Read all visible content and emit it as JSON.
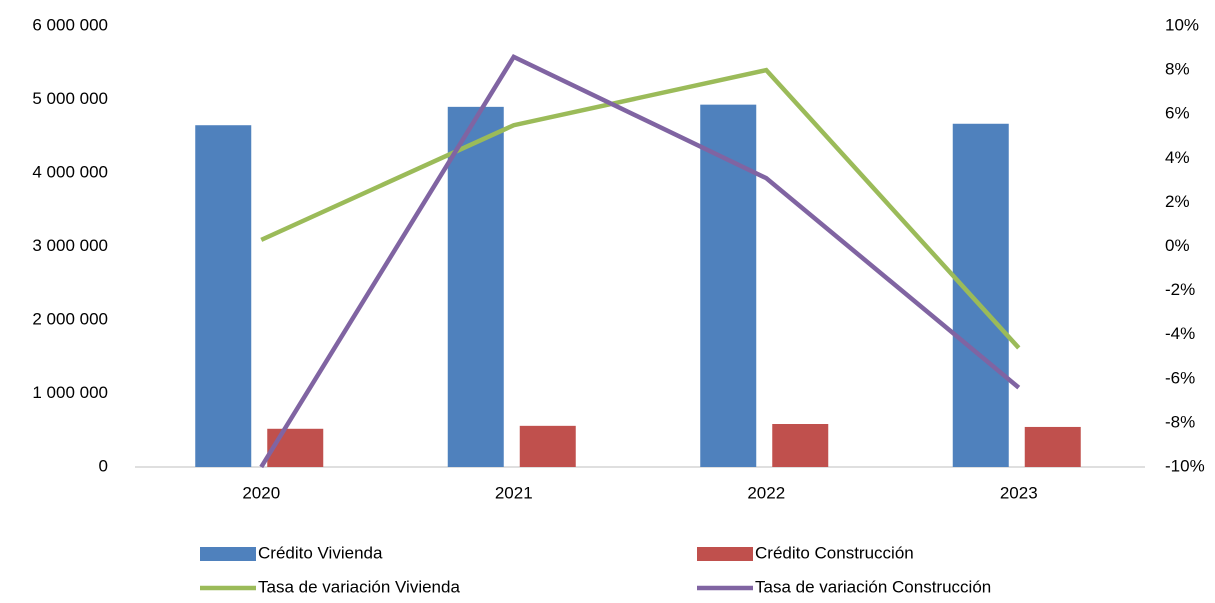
{
  "chart_data": {
    "type": "bar-line",
    "categories": [
      "2020",
      "2021",
      "2022",
      "2023"
    ],
    "series": [
      {
        "name": "Crédito Vivienda",
        "type": "bar",
        "color": "#4f81bd",
        "values": [
          4650000,
          4900000,
          4930000,
          4670000
        ]
      },
      {
        "name": "Crédito Construcción",
        "type": "bar",
        "color": "#c0504d",
        "values": [
          520000,
          560000,
          585000,
          545000
        ]
      },
      {
        "name": "Tasa de variación Vivienda",
        "type": "line",
        "axis": "y2",
        "color": "#9bbb59",
        "values": [
          0.3,
          5.5,
          8.0,
          -4.6
        ]
      },
      {
        "name": "Tasa de variación Construcción",
        "type": "line",
        "axis": "y2",
        "color": "#8064a2",
        "values": [
          -10,
          8.6,
          3.1,
          -6.4
        ]
      }
    ],
    "ylim": [
      0,
      6000000
    ],
    "yticks": [
      0,
      {
        "value": 1000000,
        "label": "1 000 000"
      },
      {
        "value": 2000000,
        "label": "2 000 000"
      },
      {
        "value": 3000000,
        "label": "3 000 000"
      },
      {
        "value": 4000000,
        "label": "4 000 000"
      },
      {
        "value": 5000000,
        "label": "5 000 000"
      },
      {
        "value": 6000000,
        "label": "6 000 000"
      }
    ],
    "y2lim": [
      -10,
      10
    ],
    "y2ticks": [
      {
        "value": -10,
        "label": "-10%"
      },
      {
        "value": -8,
        "label": "-8%"
      },
      {
        "value": -6,
        "label": "-6%"
      },
      {
        "value": -4,
        "label": "-4%"
      },
      {
        "value": -2,
        "label": "-2%"
      },
      {
        "value": 0,
        "label": "0%"
      },
      {
        "value": 2,
        "label": "2%"
      },
      {
        "value": 4,
        "label": "4%"
      },
      {
        "value": 6,
        "label": "6%"
      },
      {
        "value": 8,
        "label": "8%"
      },
      {
        "value": 10,
        "label": "10%"
      }
    ]
  }
}
